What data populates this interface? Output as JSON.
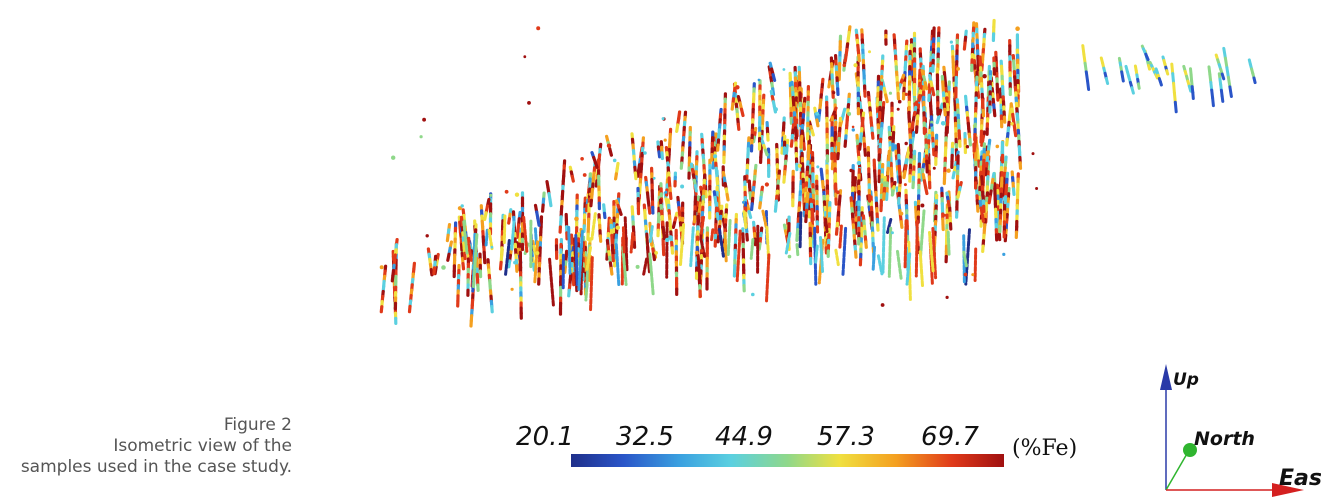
{
  "figure": {
    "caption_title": "Figure 2",
    "caption_line1": "Isometric view of the",
    "caption_line2": "samples used in the case study."
  },
  "colorbar": {
    "ticks": [
      "20.1",
      "32.5",
      "44.9",
      "57.3",
      "69.7"
    ],
    "unit": "(%Fe)",
    "range": [
      20.1,
      69.7
    ],
    "colors": [
      "#1f2f8a",
      "#2a55c8",
      "#3aa0e0",
      "#5bd0e0",
      "#8fd88a",
      "#f0e040",
      "#f4a020",
      "#e03a1a",
      "#a01010"
    ]
  },
  "axes_triad": {
    "up": "Up",
    "north": "North",
    "east": "East",
    "up_color": "#2a3aa8",
    "north_color": "#2fb52f",
    "east_color": "#d42020"
  }
}
